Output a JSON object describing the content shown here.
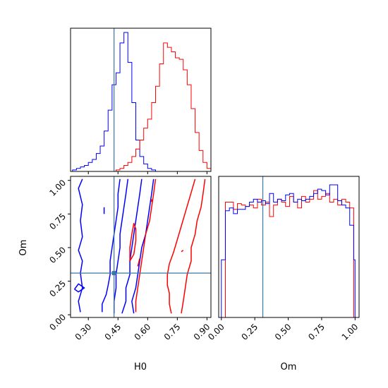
{
  "chart_data": {
    "type": "corner",
    "parameters": [
      "H0",
      "Om"
    ],
    "truths": {
      "H0": 0.43,
      "Om": 0.31
    },
    "ranges": {
      "H0": [
        0.21,
        0.92
      ],
      "Om": [
        -0.02,
        1.03
      ]
    },
    "ticks": {
      "H0": [
        "0.30",
        "0.45",
        "0.60",
        "0.75",
        "0.90"
      ],
      "Om": [
        "0.00",
        "0.25",
        "0.50",
        "0.75",
        "1.00"
      ]
    },
    "series": [
      {
        "name": "blue",
        "color": "#0000ff",
        "h0_hist": {
          "edges": [
            0.22,
            0.24,
            0.26,
            0.28,
            0.3,
            0.32,
            0.34,
            0.36,
            0.38,
            0.4,
            0.42,
            0.44,
            0.46,
            0.48,
            0.5,
            0.52,
            0.54,
            0.56,
            0.58,
            0.6,
            0.62,
            0.64
          ],
          "counts": [
            1,
            2,
            3,
            4,
            6,
            8,
            12,
            17,
            27,
            41,
            58,
            66,
            86,
            93,
            73,
            46,
            21,
            10,
            5,
            2,
            1
          ]
        },
        "om_hist": {
          "edges": [
            0.0,
            0.03,
            0.06,
            0.09,
            0.12,
            0.15,
            0.18,
            0.21,
            0.24,
            0.27,
            0.3,
            0.33,
            0.36,
            0.39,
            0.42,
            0.45,
            0.48,
            0.51,
            0.54,
            0.57,
            0.6,
            0.63,
            0.66,
            0.69,
            0.72,
            0.75,
            0.78,
            0.81,
            0.84,
            0.87,
            0.9,
            0.93,
            0.96,
            0.99,
            1.0
          ],
          "counts": [
            40,
            74,
            76,
            72,
            75,
            75,
            77,
            80,
            82,
            80,
            81,
            79,
            86,
            80,
            82,
            81,
            85,
            86,
            80,
            82,
            81,
            82,
            84,
            86,
            89,
            88,
            85,
            92,
            92,
            81,
            78,
            76,
            64,
            40
          ]
        },
        "contours": [
          [
            [
              0.26,
              0.02
            ],
            [
              0.25,
              0.1
            ],
            [
              0.27,
              0.2
            ],
            [
              0.26,
              0.31
            ],
            [
              0.27,
              0.4
            ],
            [
              0.25,
              0.48
            ],
            [
              0.27,
              0.58
            ],
            [
              0.26,
              0.7
            ],
            [
              0.27,
              0.82
            ],
            [
              0.25,
              0.94
            ],
            [
              0.27,
              1.01
            ]
          ],
          [
            [
              0.43,
              0.01
            ],
            [
              0.43,
              0.1
            ],
            [
              0.44,
              0.2
            ],
            [
              0.44,
              0.3
            ],
            [
              0.45,
              0.4
            ],
            [
              0.46,
              0.5
            ],
            [
              0.46,
              0.6
            ],
            [
              0.47,
              0.7
            ],
            [
              0.48,
              0.8
            ],
            [
              0.49,
              0.9
            ],
            [
              0.5,
              1.01
            ]
          ],
          [
            [
              0.53,
              0.01
            ],
            [
              0.52,
              0.1
            ],
            [
              0.54,
              0.2
            ],
            [
              0.55,
              0.3
            ],
            [
              0.56,
              0.4
            ],
            [
              0.57,
              0.5
            ],
            [
              0.59,
              0.6
            ],
            [
              0.6,
              0.7
            ],
            [
              0.61,
              0.8
            ],
            [
              0.62,
              0.9
            ],
            [
              0.63,
              1.01
            ]
          ],
          [
            [
              0.37,
              0.02
            ],
            [
              0.37,
              0.08
            ],
            [
              0.39,
              0.15
            ],
            [
              0.4,
              0.22
            ],
            [
              0.41,
              0.3
            ],
            [
              0.41,
              0.4
            ],
            [
              0.42,
              0.5
            ],
            [
              0.43,
              0.6
            ],
            [
              0.44,
              0.7
            ],
            [
              0.45,
              0.8
            ],
            [
              0.45,
              0.9
            ],
            [
              0.46,
              1.01
            ]
          ],
          [
            [
              0.47,
              0.01
            ],
            [
              0.49,
              0.1
            ],
            [
              0.49,
              0.2
            ],
            [
              0.51,
              0.3
            ],
            [
              0.51,
              0.4
            ],
            [
              0.52,
              0.5
            ],
            [
              0.53,
              0.6
            ],
            [
              0.54,
              0.7
            ],
            [
              0.55,
              0.8
            ],
            [
              0.56,
              0.9
            ],
            [
              0.57,
              1.01
            ]
          ],
          [
            [
              0.23,
              0.19
            ],
            [
              0.25,
              0.17
            ],
            [
              0.28,
              0.2
            ],
            [
              0.25,
              0.23
            ],
            [
              0.23,
              0.19
            ]
          ],
          [
            [
              0.38,
              0.75
            ],
            [
              0.38,
              0.8
            ]
          ]
        ]
      },
      {
        "name": "red",
        "color": "#ff0000",
        "h0_hist": {
          "edges": [
            0.44,
            0.46,
            0.48,
            0.5,
            0.52,
            0.54,
            0.56,
            0.58,
            0.6,
            0.62,
            0.64,
            0.66,
            0.68,
            0.7,
            0.72,
            0.74,
            0.76,
            0.78,
            0.8,
            0.82,
            0.84,
            0.86,
            0.88,
            0.9,
            0.92
          ],
          "counts": [
            1,
            2,
            4,
            6,
            10,
            15,
            21,
            29,
            35,
            46,
            57,
            72,
            86,
            83,
            80,
            76,
            75,
            68,
            58,
            42,
            26,
            14,
            6,
            2
          ]
        },
        "om_hist": {
          "edges": [
            0.0,
            0.03,
            0.06,
            0.09,
            0.12,
            0.15,
            0.18,
            0.21,
            0.24,
            0.27,
            0.3,
            0.33,
            0.36,
            0.39,
            0.42,
            0.45,
            0.48,
            0.51,
            0.54,
            0.57,
            0.6,
            0.63,
            0.66,
            0.69,
            0.72,
            0.75,
            0.78,
            0.81,
            0.84,
            0.87,
            0.9,
            0.93,
            0.96,
            0.99,
            1.0
          ],
          "counts": [
            0,
            80,
            80,
            75,
            79,
            78,
            77,
            78,
            76,
            82,
            78,
            80,
            70,
            78,
            82,
            80,
            77,
            84,
            80,
            76,
            84,
            80,
            82,
            88,
            82,
            84,
            86,
            80,
            82,
            78,
            82,
            80,
            76,
            0
          ]
        },
        "contours": [
          [
            [
              0.72,
              0.01
            ],
            [
              0.71,
              0.08
            ],
            [
              0.71,
              0.16
            ],
            [
              0.7,
              0.22
            ],
            [
              0.7,
              0.3
            ],
            [
              0.71,
              0.38
            ],
            [
              0.73,
              0.46
            ],
            [
              0.75,
              0.56
            ],
            [
              0.77,
              0.66
            ],
            [
              0.79,
              0.76
            ],
            [
              0.81,
              0.86
            ],
            [
              0.83,
              0.96
            ],
            [
              0.84,
              1.01
            ]
          ],
          [
            [
              0.77,
              0.01
            ],
            [
              0.78,
              0.1
            ],
            [
              0.79,
              0.2
            ],
            [
              0.8,
              0.3
            ],
            [
              0.82,
              0.4
            ],
            [
              0.82,
              0.5
            ],
            [
              0.84,
              0.6
            ],
            [
              0.85,
              0.7
            ],
            [
              0.87,
              0.8
            ],
            [
              0.88,
              0.9
            ],
            [
              0.89,
              1.01
            ]
          ],
          [
            [
              0.54,
              0.02
            ],
            [
              0.54,
              0.1
            ],
            [
              0.55,
              0.2
            ],
            [
              0.56,
              0.3
            ],
            [
              0.57,
              0.4
            ],
            [
              0.58,
              0.5
            ],
            [
              0.59,
              0.6
            ],
            [
              0.61,
              0.7
            ],
            [
              0.62,
              0.8
            ],
            [
              0.63,
              0.9
            ],
            [
              0.64,
              1.01
            ]
          ],
          [
            [
              0.51,
              0.4
            ],
            [
              0.51,
              0.5
            ],
            [
              0.52,
              0.6
            ],
            [
              0.53,
              0.68
            ],
            [
              0.54,
              0.64
            ],
            [
              0.54,
              0.55
            ],
            [
              0.53,
              0.45
            ],
            [
              0.51,
              0.4
            ]
          ],
          [
            [
              0.55,
              0.36
            ],
            [
              0.56,
              0.42
            ]
          ],
          [
            [
              0.62,
              0.86
            ],
            [
              0.62,
              0.84
            ]
          ],
          [
            [
              0.78,
              0.48
            ],
            [
              0.77,
              0.47
            ]
          ]
        ]
      }
    ]
  },
  "labels": {
    "x_h0": "H0",
    "x_om": "Om",
    "y_om": "Om"
  }
}
